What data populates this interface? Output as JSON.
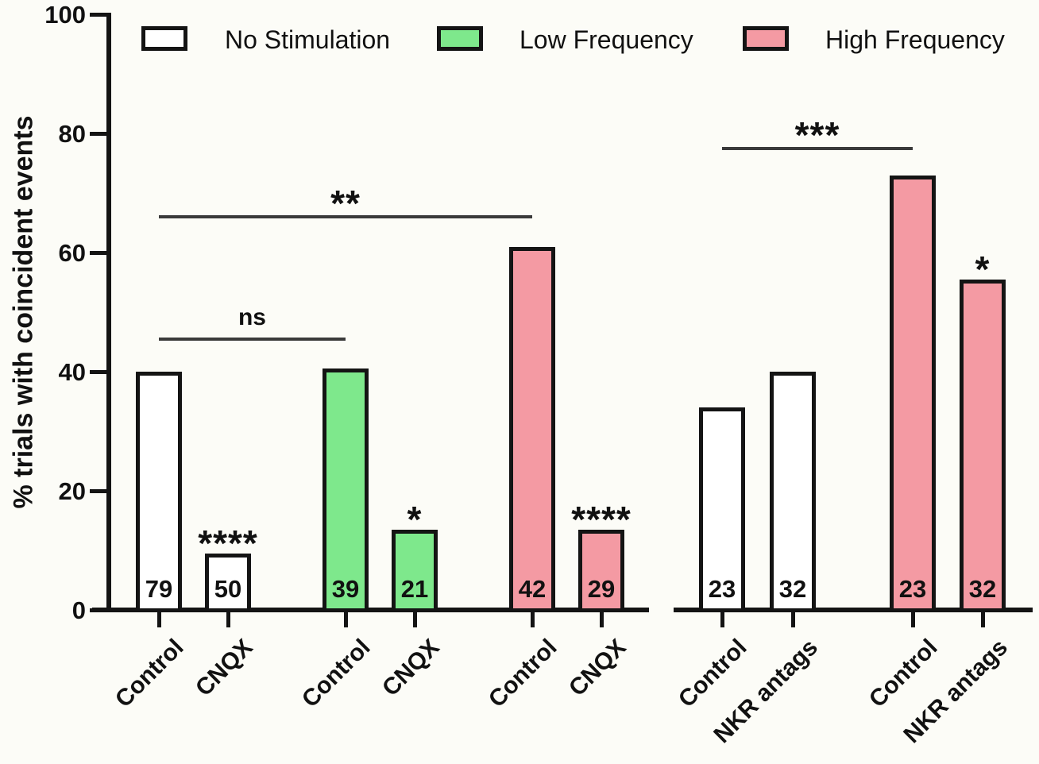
{
  "figure": {
    "background": "#FCFCF7",
    "axis_color": "#141414",
    "sig_line_color": "#3a3a3a"
  },
  "colors": {
    "No Stimulation": "#FFFFFF",
    "Low Frequency": "#7EE88C",
    "High Frequency": "#F49AA3"
  },
  "legend": {
    "items": [
      {
        "label": "No Stimulation"
      },
      {
        "label": "Low Frequency"
      },
      {
        "label": "High Frequency"
      }
    ]
  },
  "chart_data": {
    "type": "bar",
    "title": "",
    "ylabel": "% trials with coincident events",
    "xlabel": "",
    "ylim": [
      0,
      100
    ],
    "yticks": [
      0,
      20,
      40,
      60,
      80,
      100
    ],
    "grid": false,
    "legend_position": "top",
    "panels": [
      {
        "name": "left",
        "bars": [
          {
            "series": "No Stimulation",
            "category": "Control",
            "value": 40,
            "n": 79,
            "sig": ""
          },
          {
            "series": "No Stimulation",
            "category": "CNQX",
            "value": 9.5,
            "n": 50,
            "sig": "****"
          },
          {
            "series": "Low Frequency",
            "category": "Control",
            "value": 40.5,
            "n": 39,
            "sig": ""
          },
          {
            "series": "Low Frequency",
            "category": "CNQX",
            "value": 13.5,
            "n": 21,
            "sig": "*"
          },
          {
            "series": "High Frequency",
            "category": "Control",
            "value": 61,
            "n": 42,
            "sig": ""
          },
          {
            "series": "High Frequency",
            "category": "CNQX",
            "value": 13.5,
            "n": 29,
            "sig": "****"
          }
        ]
      },
      {
        "name": "right",
        "bars": [
          {
            "series": "No Stimulation",
            "category": "Control",
            "value": 34,
            "n": 23,
            "sig": ""
          },
          {
            "series": "No Stimulation",
            "category": "NKR antags",
            "value": 40,
            "n": 32,
            "sig": ""
          },
          {
            "series": "High Frequency",
            "category": "Control",
            "value": 73,
            "n": 23,
            "sig": ""
          },
          {
            "series": "High Frequency",
            "category": "NKR antags",
            "value": 55.5,
            "n": 32,
            "sig": "*"
          }
        ]
      }
    ],
    "comparisons": [
      {
        "label": "ns",
        "from_bar": 0,
        "to_bar": 2,
        "height": 45.5
      },
      {
        "label": "**",
        "from_bar": 0,
        "to_bar": 4,
        "height": 66
      },
      {
        "label": "***",
        "from_bar": 6,
        "to_bar": 8,
        "height": 77.5
      }
    ]
  }
}
